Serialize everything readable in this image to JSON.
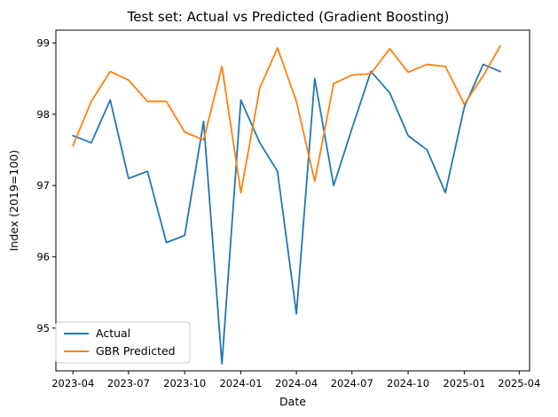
{
  "chart_data": {
    "type": "line",
    "title": "Test set: Actual vs Predicted (Gradient Boosting)",
    "xlabel": "Date",
    "ylabel": "Index (2019=100)",
    "x_ticks": [
      "2023-04",
      "2023-07",
      "2023-10",
      "2024-01",
      "2024-04",
      "2024-07",
      "2024-10",
      "2025-01",
      "2025-04"
    ],
    "y_ticks": [
      95,
      96,
      97,
      98,
      99
    ],
    "xlim": [
      "2023-03-04",
      "2025-04-18"
    ],
    "ylim": [
      94.4,
      99.18
    ],
    "legend_position": "lower-left",
    "grid": false,
    "x": [
      "2023-04-01",
      "2023-05-01",
      "2023-06-01",
      "2023-07-01",
      "2023-08-01",
      "2023-09-01",
      "2023-10-01",
      "2023-11-01",
      "2023-12-01",
      "2024-01-01",
      "2024-02-01",
      "2024-03-01",
      "2024-04-01",
      "2024-05-01",
      "2024-06-01",
      "2024-07-01",
      "2024-08-01",
      "2024-09-01",
      "2024-10-01",
      "2024-11-01",
      "2024-12-01",
      "2025-01-01",
      "2025-02-01",
      "2025-03-01"
    ],
    "series": [
      {
        "name": "Actual",
        "color": "#1f77b4",
        "values": [
          97.7,
          97.6,
          98.2,
          97.1,
          97.2,
          96.2,
          96.3,
          97.9,
          94.5,
          98.2,
          97.6,
          97.2,
          95.2,
          98.5,
          97.0,
          97.8,
          98.6,
          98.3,
          97.7,
          97.5,
          96.9,
          98.1,
          98.7,
          98.6
        ]
      },
      {
        "name": "GBR Predicted",
        "color": "#ff7f0e",
        "values": [
          97.56,
          98.18,
          98.6,
          98.48,
          98.18,
          98.18,
          97.75,
          97.64,
          98.67,
          96.9,
          98.37,
          98.93,
          98.18,
          97.06,
          98.43,
          98.55,
          98.57,
          98.92,
          98.59,
          98.7,
          98.67,
          98.14,
          98.54,
          98.96
        ]
      }
    ]
  }
}
